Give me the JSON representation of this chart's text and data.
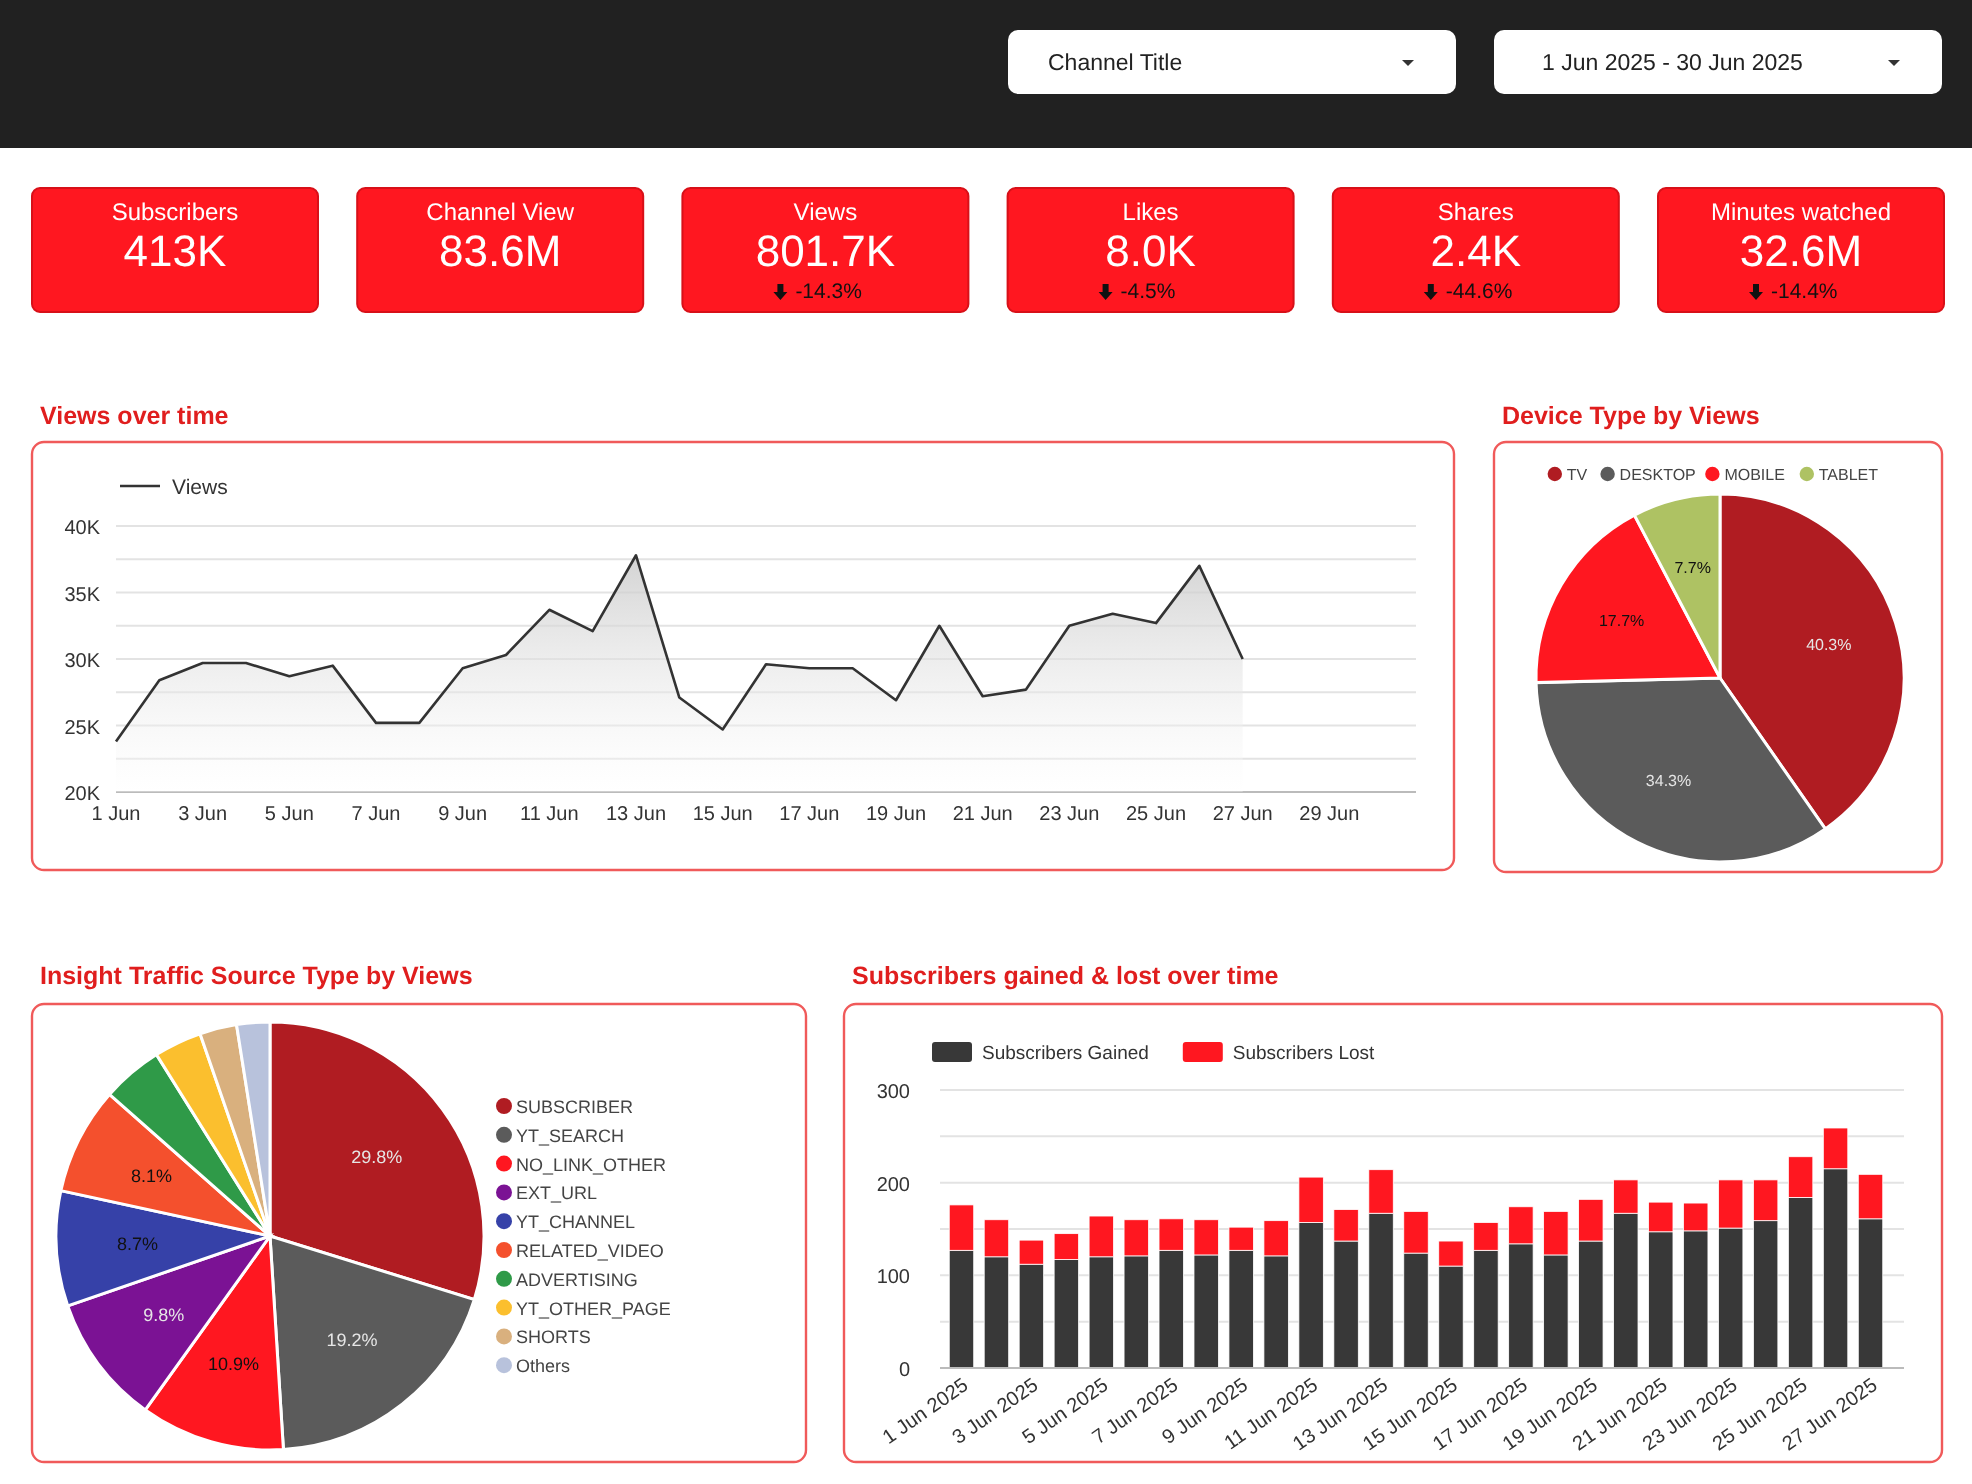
{
  "chart_data": [
    {
      "type": "other",
      "annotations": [
        "Channel Title",
        "1 Jun 2025 - 30 Jun 2025"
      ]
    },
    {
      "type": "other",
      "title": "Subscribers",
      "annotations": [
        "413K"
      ]
    },
    {
      "type": "other",
      "title": "Channel View",
      "annotations": [
        "83.6M"
      ]
    },
    {
      "type": "other",
      "title": "Views",
      "annotations": [
        "801.7K",
        "-14.3%"
      ]
    },
    {
      "type": "other",
      "title": "Likes",
      "annotations": [
        "8.0K",
        "-4.5%"
      ]
    },
    {
      "type": "other",
      "title": "Shares",
      "annotations": [
        "2.4K",
        "-44.6%"
      ]
    },
    {
      "type": "other",
      "title": "Minutes watched",
      "annotations": [
        "32.6M",
        "-14.4%"
      ]
    },
    {
      "type": "area",
      "title": "Views over time",
      "legend": "top left",
      "grid": "y",
      "x": [
        "2025-06-01",
        "2025-06-02",
        "2025-06-03",
        "2025-06-04",
        "2025-06-05",
        "2025-06-06",
        "2025-06-07",
        "2025-06-08",
        "2025-06-09",
        "2025-06-10",
        "2025-06-11",
        "2025-06-12",
        "2025-06-13",
        "2025-06-14",
        "2025-06-15",
        "2025-06-16",
        "2025-06-17",
        "2025-06-18",
        "2025-06-19",
        "2025-06-20",
        "2025-06-21",
        "2025-06-22",
        "2025-06-23",
        "2025-06-24",
        "2025-06-25",
        "2025-06-26",
        "2025-06-27"
      ],
      "series": [
        {
          "name": "Views",
          "color": "#333333",
          "values": [
            23800,
            28400,
            29700,
            29700,
            28700,
            29500,
            25200,
            25200,
            29300,
            30300,
            33700,
            32100,
            37800,
            27100,
            24700,
            29600,
            29300,
            29300,
            26900,
            32500,
            27200,
            27700,
            32500,
            33400,
            32700,
            37000,
            30000
          ]
        }
      ],
      "xlim": [
        "2025-06-01",
        "2025-07-01"
      ],
      "xticks": [
        {
          "value": "2025-06-01",
          "label": "1 Jun"
        },
        {
          "value": "2025-06-03",
          "label": "3 Jun"
        },
        {
          "value": "2025-06-05",
          "label": "5 Jun"
        },
        {
          "value": "2025-06-07",
          "label": "7 Jun"
        },
        {
          "value": "2025-06-09",
          "label": "9 Jun"
        },
        {
          "value": "2025-06-11",
          "label": "11 Jun"
        },
        {
          "value": "2025-06-13",
          "label": "13 Jun"
        },
        {
          "value": "2025-06-15",
          "label": "15 Jun"
        },
        {
          "value": "2025-06-17",
          "label": "17 Jun"
        },
        {
          "value": "2025-06-19",
          "label": "19 Jun"
        },
        {
          "value": "2025-06-21",
          "label": "21 Jun"
        },
        {
          "value": "2025-06-23",
          "label": "23 Jun"
        },
        {
          "value": "2025-06-25",
          "label": "25 Jun"
        },
        {
          "value": "2025-06-27",
          "label": "27 Jun"
        },
        {
          "value": "2025-06-29",
          "label": "29 Jun"
        }
      ],
      "ylim": [
        20000,
        40000
      ],
      "yticks": [
        {
          "value": 20000,
          "label": "20K"
        },
        {
          "value": 22500,
          "label": null
        },
        {
          "value": 25000,
          "label": "25K"
        },
        {
          "value": 27500,
          "label": null
        },
        {
          "value": 30000,
          "label": "30K"
        },
        {
          "value": 32500,
          "label": null
        },
        {
          "value": 35000,
          "label": "35K"
        },
        {
          "value": 37500,
          "label": null
        },
        {
          "value": 40000,
          "label": "40K"
        }
      ]
    },
    {
      "type": "pie",
      "title": "Device Type by Views",
      "legend": "top",
      "categories": [
        "TV",
        "DESKTOP",
        "MOBILE",
        "TABLET"
      ],
      "values": [
        40.3,
        34.3,
        17.7,
        7.7
      ],
      "colors": [
        "#b01c22",
        "#5b5b5b",
        "#ff1720",
        "#aec263"
      ],
      "value_labels": [
        "40.3%",
        "34.3%",
        "17.7%",
        "7.7%"
      ]
    },
    {
      "type": "pie",
      "title": "Insight Traffic Source Type by Views",
      "legend": "right",
      "categories": [
        "SUBSCRIBER",
        "YT_SEARCH",
        "NO_LINK_OTHER",
        "EXT_URL",
        "YT_CHANNEL",
        "RELATED_VIDEO",
        "ADVERTISING",
        "YT_OTHER_PAGE",
        "SHORTS",
        "Others"
      ],
      "values": [
        29.8,
        19.2,
        10.9,
        9.8,
        8.7,
        8.1,
        4.6,
        3.6,
        2.8,
        2.5
      ],
      "colors": [
        "#b01c22",
        "#5b5b5b",
        "#ff1720",
        "#7b1294",
        "#3641a8",
        "#f4502d",
        "#2f9a48",
        "#fbbf2e",
        "#d9b07e",
        "#b8c2dc"
      ],
      "value_labels": [
        "29.8%",
        "19.2%",
        "10.9%",
        "9.8%",
        "8.7%",
        "8.1%",
        null,
        null,
        null,
        null
      ]
    },
    {
      "type": "bar",
      "title": "Subscribers gained & lost over time",
      "stacked": true,
      "legend": "top left",
      "grid": "y",
      "categories": [
        "1 Jun 2025",
        null,
        "3 Jun 2025",
        null,
        "5 Jun 2025",
        null,
        "7 Jun 2025",
        null,
        "9 Jun 2025",
        null,
        "11 Jun 2025",
        null,
        "13 Jun 2025",
        null,
        "15 Jun 2025",
        null,
        "17 Jun 2025",
        null,
        "19 Jun 2025",
        null,
        "21 Jun 2025",
        null,
        "23 Jun 2025",
        null,
        "25 Jun 2025",
        null,
        "27 Jun 2025"
      ],
      "series": [
        {
          "name": "Subscribers Gained",
          "color": "#383838",
          "values": [
            127,
            120,
            112,
            117,
            120,
            121,
            127,
            122,
            127,
            121,
            157,
            137,
            167,
            124,
            110,
            127,
            134,
            122,
            137,
            167,
            147,
            148,
            151,
            159,
            184,
            215,
            161
          ]
        },
        {
          "name": "Subscribers Lost",
          "color": "#ff1720",
          "values": [
            49,
            40,
            26,
            28,
            44,
            39,
            34,
            38,
            25,
            38,
            49,
            34,
            47,
            45,
            27,
            30,
            40,
            47,
            45,
            36,
            32,
            30,
            52,
            44,
            44,
            44,
            48
          ]
        }
      ],
      "ylim": [
        0,
        300
      ],
      "yticks": [
        0,
        {
          "value": 50,
          "label": null
        },
        100,
        {
          "value": 150,
          "label": null
        },
        200,
        {
          "value": 250,
          "label": null
        },
        300
      ]
    }
  ]
}
